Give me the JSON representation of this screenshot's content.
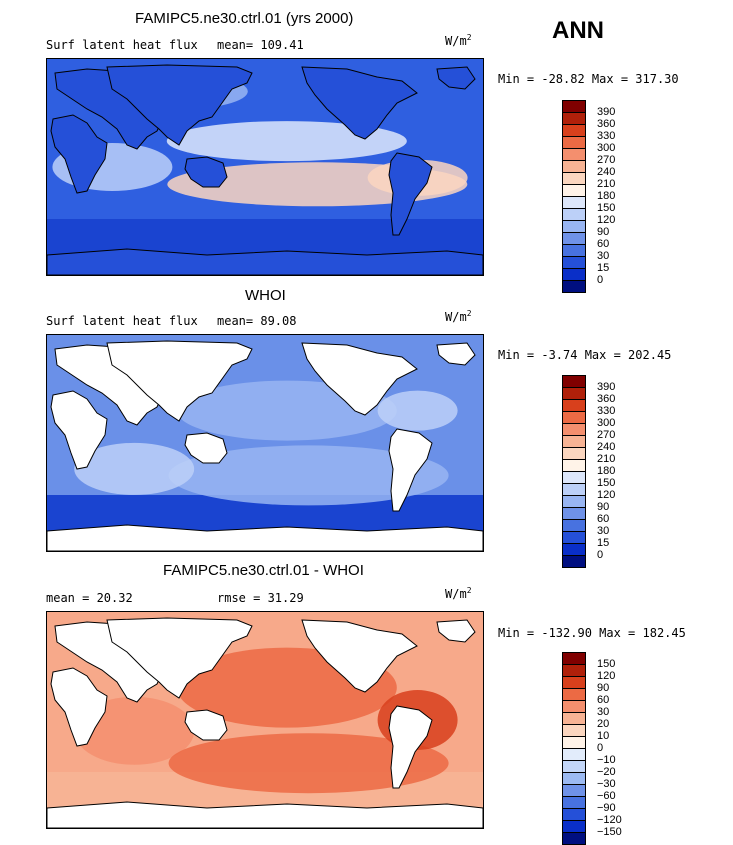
{
  "season": "ANN",
  "panels": [
    {
      "title": "FAMIPC5.ne30.ctrl.01 (yrs 2000)",
      "stat_left": "Surf latent heat flux",
      "stat_right": "mean= 109.41",
      "units": "W/m",
      "units_exp": "2",
      "minmax": "Min = -28.82 Max = 317.30",
      "colorbar": {
        "labels": [
          "390",
          "360",
          "330",
          "300",
          "270",
          "240",
          "210",
          "180",
          "150",
          "120",
          "90",
          "60",
          "30",
          "15",
          "0"
        ],
        "colors": [
          "#800000",
          "#b0200a",
          "#d8401c",
          "#ec6a44",
          "#f48f6e",
          "#f7b394",
          "#fbd6bf",
          "#fff3e8",
          "#dde7fb",
          "#bcd0f8",
          "#98b5f2",
          "#6f92e8",
          "#4872e0",
          "#2550d8",
          "#0a2fc8",
          "#000f80"
        ]
      },
      "map": {
        "base_color": "#2f5fe0",
        "land_white": false
      }
    },
    {
      "title": "WHOI",
      "stat_left": "Surf latent heat flux",
      "stat_right": "mean=  89.08",
      "units": "W/m",
      "units_exp": "2",
      "minmax": "Min =  -3.74 Max = 202.45",
      "colorbar": {
        "labels": [
          "390",
          "360",
          "330",
          "300",
          "270",
          "240",
          "210",
          "180",
          "150",
          "120",
          "90",
          "60",
          "30",
          "15",
          "0"
        ],
        "colors": [
          "#800000",
          "#b0200a",
          "#d8401c",
          "#ec6a44",
          "#f48f6e",
          "#f7b394",
          "#fbd6bf",
          "#fff3e8",
          "#dde7fb",
          "#bcd0f8",
          "#98b5f2",
          "#6f92e8",
          "#4872e0",
          "#2550d8",
          "#0a2fc8",
          "#000f80"
        ]
      },
      "map": {
        "base_color": "#6a90e8",
        "land_white": true
      }
    },
    {
      "title": "FAMIPC5.ne30.ctrl.01 - WHOI",
      "stat_left": "mean =  20.32",
      "stat_right": "rmse =  31.29",
      "units": "W/m",
      "units_exp": "2",
      "minmax": "Min = -132.90 Max = 182.45",
      "colorbar": {
        "labels": [
          "150",
          "120",
          "90",
          "60",
          "30",
          "20",
          "10",
          "0",
          "−10",
          "−20",
          "−30",
          "−60",
          "−90",
          "−120",
          "−150"
        ],
        "colors": [
          "#800000",
          "#b0200a",
          "#d8401c",
          "#ec6a44",
          "#f48f6e",
          "#f7b394",
          "#fbd6bf",
          "#fff3e8",
          "#e2ecfb",
          "#c3d6f8",
          "#9cbaf2",
          "#6f92e8",
          "#4872e0",
          "#2550d8",
          "#0a2fc8",
          "#000f80"
        ]
      },
      "map": {
        "base_color": "#f7a98a",
        "land_white": true
      }
    }
  ]
}
